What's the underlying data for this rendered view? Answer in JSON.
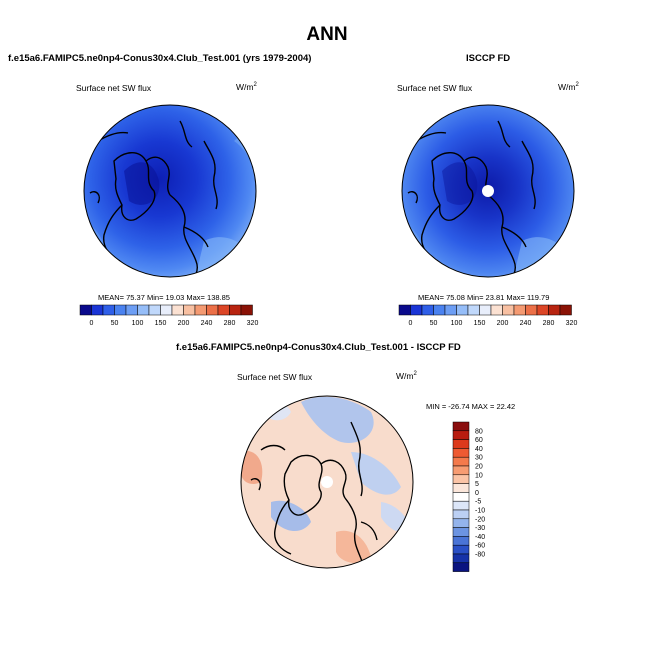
{
  "page": {
    "title": "ANN"
  },
  "panels": [
    {
      "id": "model",
      "case_title": "f.e15a6.FAMIPC5.ne0np4-Conus30x4.Club_Test.001 (yrs 1979-2004)",
      "variable": "Surface net SW flux",
      "units_base": "W/m",
      "units_exp": "2",
      "stats_text": "MEAN=  75.37  Min=  19.03  Max=  138.85"
    },
    {
      "id": "obs",
      "case_title": "ISCCP FD",
      "variable": "Surface net SW flux",
      "units_base": "W/m",
      "units_exp": "2",
      "stats_text": "MEAN=  75.08  Min=  23.81  Max=  119.79"
    },
    {
      "id": "diff",
      "case_title": "f.e15a6.FAMIPC5.ne0np4-Conus30x4.Club_Test.001 - ISCCP FD",
      "variable": "Surface net SW flux",
      "units_base": "W/m",
      "units_exp": "2",
      "stats_text": "MIN = -26.74  MAX =  22.42"
    }
  ],
  "colorbars": {
    "absolute": {
      "tick_labels": [
        "0",
        "50",
        "100",
        "150",
        "200",
        "240",
        "280",
        "320"
      ],
      "colors": [
        "#0a0a8c",
        "#1a35d6",
        "#2f5fe8",
        "#4a82f0",
        "#6d9ef4",
        "#95bdf8",
        "#c0d8fb",
        "#e8eefb",
        "#fbe1d2",
        "#f8c0a2",
        "#f49a72",
        "#ec7048",
        "#dc4626",
        "#b82410",
        "#8a1206"
      ]
    },
    "difference": {
      "tick_labels": [
        "80",
        "60",
        "40",
        "30",
        "20",
        "10",
        "5",
        "0",
        "-5",
        "-10",
        "-20",
        "-30",
        "-40",
        "-60",
        "-80"
      ],
      "colors": [
        "#8a0e0e",
        "#b81c10",
        "#dc3a1c",
        "#ee5a32",
        "#f47a4c",
        "#f79c72",
        "#fbc4a6",
        "#fbe6da",
        "#ffffff",
        "#dce6f8",
        "#bcd0f4",
        "#94b4ec",
        "#6c94e2",
        "#4a74d6",
        "#2a50c6",
        "#1632a8",
        "#0a1480"
      ]
    }
  },
  "chart_data": [
    {
      "type": "heatmap",
      "projection": "north polar stereographic",
      "title": "f.e15a6.FAMIPC5.ne0np4-Conus30x4.Club_Test.001 (yrs 1979-2004)",
      "variable": "Surface net SW flux",
      "units": "W/m2",
      "stats": {
        "mean": 75.37,
        "min": 19.03,
        "max": 138.85
      },
      "color_levels": [
        0,
        50,
        100,
        150,
        200,
        240,
        280,
        320
      ]
    },
    {
      "type": "heatmap",
      "projection": "north polar stereographic",
      "title": "ISCCP FD",
      "variable": "Surface net SW flux",
      "units": "W/m2",
      "stats": {
        "mean": 75.08,
        "min": 23.81,
        "max": 119.79
      },
      "color_levels": [
        0,
        50,
        100,
        150,
        200,
        240,
        280,
        320
      ]
    },
    {
      "type": "heatmap",
      "projection": "north polar stereographic",
      "title": "f.e15a6.FAMIPC5.ne0np4-Conus30x4.Club_Test.001 - ISCCP FD",
      "variable": "Surface net SW flux",
      "units": "W/m2",
      "stats": {
        "min": -26.74,
        "max": 22.42
      },
      "color_levels": [
        -80,
        -60,
        -40,
        -30,
        -20,
        -10,
        -5,
        0,
        5,
        10,
        20,
        30,
        40,
        60,
        80
      ]
    }
  ]
}
